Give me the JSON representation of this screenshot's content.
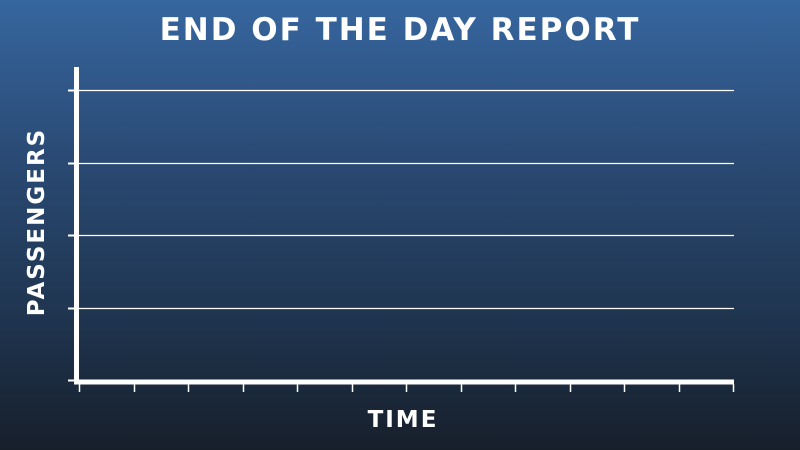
{
  "chart_data": {
    "type": "line",
    "title": "END OF THE DAY REPORT",
    "xlabel": "TIME",
    "ylabel": "PASSENGERS",
    "series": [],
    "grid": true,
    "y_gridlines": 4,
    "y_ticks": 5,
    "x_ticks": 13,
    "legend": "none",
    "colors": {
      "background_top": "#36669f",
      "background_bottom": "#171f2b",
      "axis": "#ffffff",
      "grid": "#ffffff",
      "text": "#ffffff"
    }
  }
}
